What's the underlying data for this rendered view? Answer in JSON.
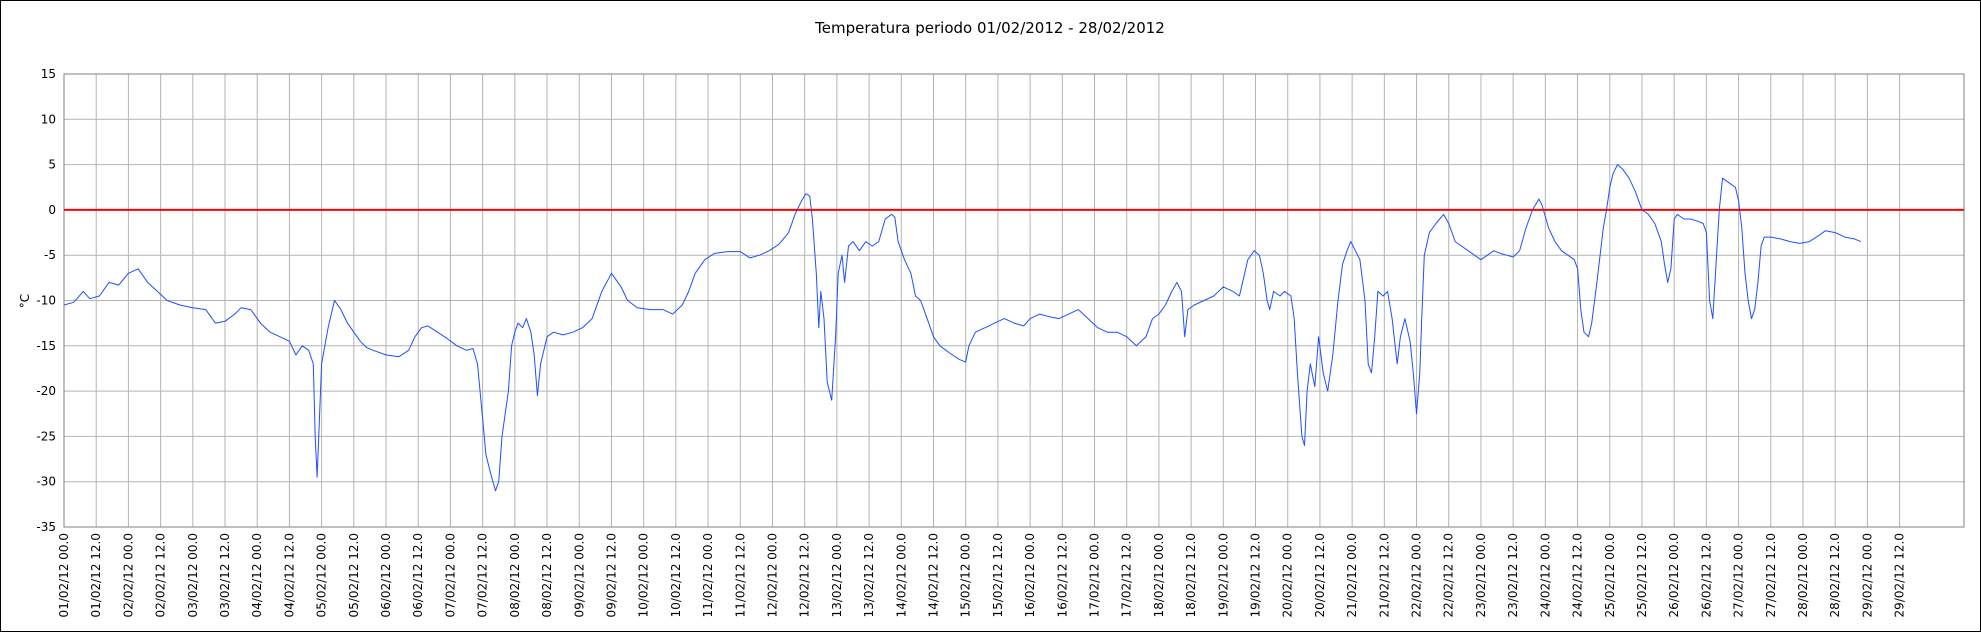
{
  "chart_data": {
    "type": "line",
    "title": "Temperatura periodo 01/02/2012 - 28/02/2012",
    "ylabel": "°C",
    "xlabel": "",
    "ylim": [
      -35,
      15
    ],
    "yticks": [
      15,
      10,
      5,
      0,
      -5,
      -10,
      -15,
      -20,
      -25,
      -30,
      -35
    ],
    "xlim_days": [
      0,
      29.5
    ],
    "x_tick_labels": [
      "01/02/12 00.0",
      "01/02/12 12.0",
      "02/02/12 00.0",
      "02/02/12 12.0",
      "03/02/12 00.0",
      "03/02/12 12.0",
      "04/02/12 00.0",
      "04/02/12 12.0",
      "05/02/12 00.0",
      "05/02/12 12.0",
      "06/02/12 00.0",
      "06/02/12 12.0",
      "07/02/12 00.0",
      "07/02/12 12.0",
      "08/02/12 00.0",
      "08/02/12 12.0",
      "09/02/12 00.0",
      "09/02/12 12.0",
      "10/02/12 00.0",
      "10/02/12 12.0",
      "11/02/12 00.0",
      "11/02/12 12.0",
      "12/02/12 00.0",
      "12/02/12 12.0",
      "13/02/12 00.0",
      "13/02/12 12.0",
      "14/02/12 00.0",
      "14/02/12 12.0",
      "15/02/12 00.0",
      "15/02/12 12.0",
      "16/02/12 00.0",
      "16/02/12 12.0",
      "17/02/12 00.0",
      "17/02/12 12.0",
      "18/02/12 00.0",
      "18/02/12 12.0",
      "19/02/12 00.0",
      "19/02/12 12.0",
      "20/02/12 00.0",
      "20/02/12 12.0",
      "21/02/12 00.0",
      "21/02/12 12.0",
      "22/02/12 00.0",
      "22/02/12 12.0",
      "23/02/12 00.0",
      "23/02/12 12.0",
      "24/02/12 00.0",
      "24/02/12 12.0",
      "25/02/12 00.0",
      "25/02/12 12.0",
      "26/02/12 00.0",
      "26/02/12 12.0",
      "27/02/12 00.0",
      "27/02/12 12.0",
      "28/02/12 00.0",
      "28/02/12 12.0",
      "29/02/12 00.0",
      "29/02/12 12.0"
    ],
    "grid": true,
    "reference_line": {
      "y": 0,
      "color": "#ff0000"
    },
    "series": [
      {
        "color": "#1f4fff",
        "points": [
          [
            0.0,
            -10.5
          ],
          [
            0.15,
            -10.2
          ],
          [
            0.3,
            -9.0
          ],
          [
            0.4,
            -9.8
          ],
          [
            0.55,
            -9.5
          ],
          [
            0.7,
            -8.0
          ],
          [
            0.85,
            -8.3
          ],
          [
            1.0,
            -7.0
          ],
          [
            1.15,
            -6.5
          ],
          [
            1.3,
            -8.0
          ],
          [
            1.45,
            -9.0
          ],
          [
            1.6,
            -10.0
          ],
          [
            1.8,
            -10.5
          ],
          [
            2.0,
            -10.8
          ],
          [
            2.2,
            -11.0
          ],
          [
            2.35,
            -12.5
          ],
          [
            2.5,
            -12.3
          ],
          [
            2.65,
            -11.5
          ],
          [
            2.75,
            -10.8
          ],
          [
            2.9,
            -11.0
          ],
          [
            3.05,
            -12.5
          ],
          [
            3.2,
            -13.5
          ],
          [
            3.35,
            -14.0
          ],
          [
            3.5,
            -14.5
          ],
          [
            3.6,
            -16.0
          ],
          [
            3.7,
            -15.0
          ],
          [
            3.8,
            -15.5
          ],
          [
            3.87,
            -17.0
          ],
          [
            3.9,
            -25.0
          ],
          [
            3.93,
            -29.5
          ],
          [
            3.96,
            -24.0
          ],
          [
            4.0,
            -17.0
          ],
          [
            4.1,
            -13.0
          ],
          [
            4.2,
            -10.0
          ],
          [
            4.3,
            -11.0
          ],
          [
            4.4,
            -12.5
          ],
          [
            4.5,
            -13.5
          ],
          [
            4.6,
            -14.5
          ],
          [
            4.7,
            -15.2
          ],
          [
            4.8,
            -15.5
          ],
          [
            5.0,
            -16.0
          ],
          [
            5.2,
            -16.2
          ],
          [
            5.35,
            -15.5
          ],
          [
            5.45,
            -14.0
          ],
          [
            5.55,
            -13.0
          ],
          [
            5.65,
            -12.8
          ],
          [
            5.8,
            -13.5
          ],
          [
            5.95,
            -14.2
          ],
          [
            6.1,
            -15.0
          ],
          [
            6.25,
            -15.5
          ],
          [
            6.35,
            -15.3
          ],
          [
            6.42,
            -17.0
          ],
          [
            6.5,
            -23.0
          ],
          [
            6.55,
            -27.0
          ],
          [
            6.62,
            -29.0
          ],
          [
            6.7,
            -31.0
          ],
          [
            6.75,
            -30.0
          ],
          [
            6.8,
            -25.0
          ],
          [
            6.9,
            -20.0
          ],
          [
            6.95,
            -15.0
          ],
          [
            7.0,
            -13.5
          ],
          [
            7.05,
            -12.5
          ],
          [
            7.12,
            -13.0
          ],
          [
            7.18,
            -12.0
          ],
          [
            7.25,
            -13.5
          ],
          [
            7.3,
            -16.0
          ],
          [
            7.35,
            -20.5
          ],
          [
            7.4,
            -17.0
          ],
          [
            7.5,
            -14.0
          ],
          [
            7.6,
            -13.5
          ],
          [
            7.75,
            -13.8
          ],
          [
            7.9,
            -13.5
          ],
          [
            8.05,
            -13.0
          ],
          [
            8.2,
            -12.0
          ],
          [
            8.35,
            -9.0
          ],
          [
            8.5,
            -7.0
          ],
          [
            8.65,
            -8.5
          ],
          [
            8.75,
            -10.0
          ],
          [
            8.9,
            -10.8
          ],
          [
            9.1,
            -11.0
          ],
          [
            9.3,
            -11.0
          ],
          [
            9.45,
            -11.5
          ],
          [
            9.6,
            -10.5
          ],
          [
            9.7,
            -9.0
          ],
          [
            9.8,
            -7.0
          ],
          [
            9.95,
            -5.5
          ],
          [
            10.1,
            -4.8
          ],
          [
            10.3,
            -4.6
          ],
          [
            10.5,
            -4.6
          ],
          [
            10.65,
            -5.3
          ],
          [
            10.8,
            -5.0
          ],
          [
            10.95,
            -4.5
          ],
          [
            11.1,
            -3.8
          ],
          [
            11.25,
            -2.5
          ],
          [
            11.35,
            -0.5
          ],
          [
            11.45,
            1.0
          ],
          [
            11.52,
            1.8
          ],
          [
            11.58,
            1.5
          ],
          [
            11.62,
            -1.0
          ],
          [
            11.68,
            -7.0
          ],
          [
            11.72,
            -13.0
          ],
          [
            11.75,
            -9.0
          ],
          [
            11.8,
            -12.0
          ],
          [
            11.85,
            -19.0
          ],
          [
            11.92,
            -21.0
          ],
          [
            11.98,
            -14.0
          ],
          [
            12.02,
            -7.0
          ],
          [
            12.08,
            -5.0
          ],
          [
            12.12,
            -8.0
          ],
          [
            12.18,
            -4.0
          ],
          [
            12.25,
            -3.5
          ],
          [
            12.35,
            -4.5
          ],
          [
            12.45,
            -3.5
          ],
          [
            12.55,
            -4.0
          ],
          [
            12.65,
            -3.5
          ],
          [
            12.75,
            -1.0
          ],
          [
            12.85,
            -0.5
          ],
          [
            12.9,
            -0.8
          ],
          [
            12.95,
            -3.5
          ],
          [
            13.05,
            -5.5
          ],
          [
            13.15,
            -7.0
          ],
          [
            13.22,
            -9.5
          ],
          [
            13.3,
            -10.0
          ],
          [
            13.4,
            -12.0
          ],
          [
            13.5,
            -14.0
          ],
          [
            13.6,
            -15.0
          ],
          [
            13.75,
            -15.8
          ],
          [
            13.9,
            -16.5
          ],
          [
            14.0,
            -16.8
          ],
          [
            14.05,
            -15.0
          ],
          [
            14.15,
            -13.5
          ],
          [
            14.3,
            -13.0
          ],
          [
            14.45,
            -12.5
          ],
          [
            14.6,
            -12.0
          ],
          [
            14.75,
            -12.5
          ],
          [
            14.9,
            -12.8
          ],
          [
            15.0,
            -12.0
          ],
          [
            15.15,
            -11.5
          ],
          [
            15.3,
            -11.8
          ],
          [
            15.45,
            -12.0
          ],
          [
            15.6,
            -11.5
          ],
          [
            15.75,
            -11.0
          ],
          [
            15.9,
            -12.0
          ],
          [
            16.05,
            -13.0
          ],
          [
            16.2,
            -13.5
          ],
          [
            16.35,
            -13.5
          ],
          [
            16.5,
            -14.0
          ],
          [
            16.65,
            -15.0
          ],
          [
            16.8,
            -14.0
          ],
          [
            16.9,
            -12.0
          ],
          [
            17.0,
            -11.5
          ],
          [
            17.1,
            -10.5
          ],
          [
            17.2,
            -9.0
          ],
          [
            17.28,
            -8.0
          ],
          [
            17.35,
            -9.0
          ],
          [
            17.4,
            -14.0
          ],
          [
            17.45,
            -11.0
          ],
          [
            17.55,
            -10.5
          ],
          [
            17.7,
            -10.0
          ],
          [
            17.85,
            -9.5
          ],
          [
            18.0,
            -8.5
          ],
          [
            18.15,
            -9.0
          ],
          [
            18.25,
            -9.5
          ],
          [
            18.3,
            -8.0
          ],
          [
            18.38,
            -5.5
          ],
          [
            18.48,
            -4.5
          ],
          [
            18.56,
            -5.0
          ],
          [
            18.62,
            -7.0
          ],
          [
            18.68,
            -10.0
          ],
          [
            18.72,
            -11.0
          ],
          [
            18.78,
            -9.0
          ],
          [
            18.88,
            -9.5
          ],
          [
            18.95,
            -9.0
          ],
          [
            19.05,
            -9.5
          ],
          [
            19.1,
            -12.0
          ],
          [
            19.15,
            -18.0
          ],
          [
            19.22,
            -25.0
          ],
          [
            19.26,
            -26.0
          ],
          [
            19.3,
            -20.0
          ],
          [
            19.35,
            -17.0
          ],
          [
            19.42,
            -19.5
          ],
          [
            19.48,
            -14.0
          ],
          [
            19.55,
            -18.0
          ],
          [
            19.62,
            -20.0
          ],
          [
            19.7,
            -16.0
          ],
          [
            19.78,
            -10.0
          ],
          [
            19.85,
            -6.0
          ],
          [
            19.92,
            -4.5
          ],
          [
            19.98,
            -3.5
          ],
          [
            20.05,
            -4.5
          ],
          [
            20.12,
            -5.5
          ],
          [
            20.2,
            -10.0
          ],
          [
            20.25,
            -17.0
          ],
          [
            20.3,
            -18.0
          ],
          [
            20.35,
            -14.0
          ],
          [
            20.4,
            -9.0
          ],
          [
            20.48,
            -9.5
          ],
          [
            20.55,
            -9.0
          ],
          [
            20.62,
            -12.0
          ],
          [
            20.7,
            -17.0
          ],
          [
            20.75,
            -14.0
          ],
          [
            20.82,
            -12.0
          ],
          [
            20.9,
            -14.5
          ],
          [
            20.95,
            -18.0
          ],
          [
            21.0,
            -22.5
          ],
          [
            21.05,
            -18.0
          ],
          [
            21.08,
            -12.0
          ],
          [
            21.12,
            -5.0
          ],
          [
            21.2,
            -2.5
          ],
          [
            21.3,
            -1.5
          ],
          [
            21.42,
            -0.5
          ],
          [
            21.5,
            -1.5
          ],
          [
            21.6,
            -3.5
          ],
          [
            21.7,
            -4.0
          ],
          [
            21.8,
            -4.5
          ],
          [
            21.9,
            -5.0
          ],
          [
            22.0,
            -5.5
          ],
          [
            22.1,
            -5.0
          ],
          [
            22.2,
            -4.5
          ],
          [
            22.3,
            -4.8
          ],
          [
            22.4,
            -5.0
          ],
          [
            22.5,
            -5.2
          ],
          [
            22.6,
            -4.5
          ],
          [
            22.7,
            -2.0
          ],
          [
            22.8,
            0.0
          ],
          [
            22.9,
            1.2
          ],
          [
            22.95,
            0.5
          ],
          [
            23.05,
            -2.0
          ],
          [
            23.15,
            -3.5
          ],
          [
            23.25,
            -4.5
          ],
          [
            23.35,
            -5.0
          ],
          [
            23.45,
            -5.5
          ],
          [
            23.5,
            -6.5
          ],
          [
            23.55,
            -11.0
          ],
          [
            23.6,
            -13.5
          ],
          [
            23.67,
            -14.0
          ],
          [
            23.72,
            -12.5
          ],
          [
            23.8,
            -8.0
          ],
          [
            23.85,
            -5.0
          ],
          [
            23.9,
            -2.0
          ],
          [
            23.95,
            0.0
          ],
          [
            24.0,
            2.5
          ],
          [
            24.05,
            4.0
          ],
          [
            24.12,
            5.0
          ],
          [
            24.2,
            4.5
          ],
          [
            24.3,
            3.5
          ],
          [
            24.4,
            2.0
          ],
          [
            24.45,
            1.0
          ],
          [
            24.5,
            0.0
          ],
          [
            24.6,
            -0.5
          ],
          [
            24.7,
            -1.5
          ],
          [
            24.8,
            -3.5
          ],
          [
            24.85,
            -6.0
          ],
          [
            24.9,
            -8.0
          ],
          [
            24.95,
            -6.5
          ],
          [
            25.0,
            -1.0
          ],
          [
            25.05,
            -0.5
          ],
          [
            25.15,
            -1.0
          ],
          [
            25.25,
            -1.0
          ],
          [
            25.35,
            -1.2
          ],
          [
            25.45,
            -1.5
          ],
          [
            25.5,
            -2.5
          ],
          [
            25.55,
            -10.0
          ],
          [
            25.6,
            -12.0
          ],
          [
            25.65,
            -6.0
          ],
          [
            25.7,
            0.0
          ],
          [
            25.75,
            3.5
          ],
          [
            25.85,
            3.0
          ],
          [
            25.95,
            2.5
          ],
          [
            26.0,
            1.0
          ],
          [
            26.05,
            -2.0
          ],
          [
            26.1,
            -7.0
          ],
          [
            26.15,
            -10.0
          ],
          [
            26.2,
            -12.0
          ],
          [
            26.25,
            -11.0
          ],
          [
            26.3,
            -8.0
          ],
          [
            26.35,
            -4.0
          ],
          [
            26.4,
            -3.0
          ],
          [
            26.5,
            -3.0
          ],
          [
            26.65,
            -3.2
          ],
          [
            26.8,
            -3.5
          ],
          [
            26.95,
            -3.7
          ],
          [
            27.1,
            -3.5
          ],
          [
            27.25,
            -2.8
          ],
          [
            27.35,
            -2.3
          ],
          [
            27.5,
            -2.5
          ],
          [
            27.65,
            -3.0
          ],
          [
            27.8,
            -3.2
          ],
          [
            27.9,
            -3.5
          ]
        ]
      }
    ]
  }
}
